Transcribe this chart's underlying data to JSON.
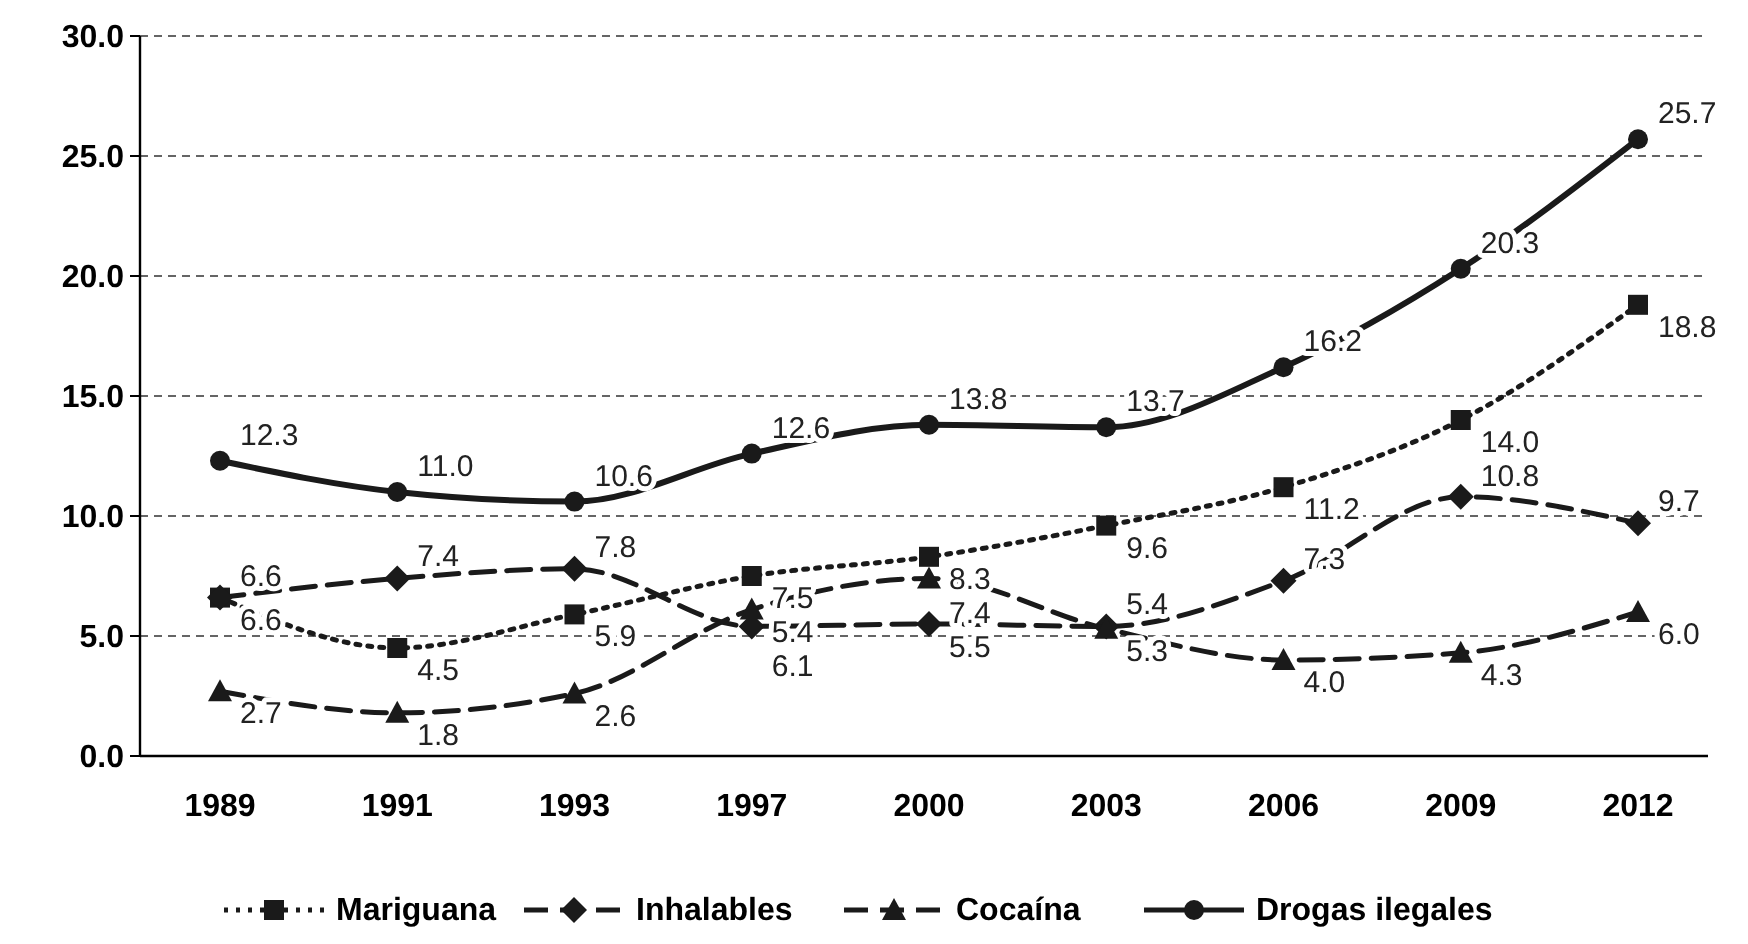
{
  "chart_data": {
    "type": "line",
    "categories": [
      "1989",
      "1991",
      "1993",
      "1997",
      "2000",
      "2003",
      "2006",
      "2009",
      "2012"
    ],
    "series": [
      {
        "name": "Mariguana",
        "color": "#1a1a1a",
        "marker": "square",
        "line_style": "dotted",
        "values": [
          6.6,
          4.5,
          5.9,
          7.5,
          8.3,
          9.6,
          11.2,
          14.0,
          18.8
        ],
        "value_labels": [
          "6.6",
          "4.5",
          "5.9",
          "7.5",
          "8.3",
          "9.6",
          "11.2",
          "14.0",
          "18.8"
        ]
      },
      {
        "name": "Inhalables",
        "color": "#1a1a1a",
        "marker": "diamond",
        "line_style": "dashed",
        "values": [
          6.6,
          7.4,
          7.8,
          5.4,
          5.5,
          5.4,
          7.3,
          10.8,
          9.7
        ],
        "value_labels": [
          "6.6",
          "7.4",
          "7.8",
          "5.4",
          "5.5",
          "5.4",
          "7.3",
          "10.8",
          "9.7"
        ]
      },
      {
        "name": "Cocaína",
        "color": "#1a1a1a",
        "marker": "triangle",
        "line_style": "dashed",
        "values": [
          2.7,
          1.8,
          2.6,
          6.1,
          7.4,
          5.3,
          4.0,
          4.3,
          6.0
        ],
        "value_labels": [
          "2.7",
          "1.8",
          "2.6",
          "6.1",
          "7.4",
          "5.3",
          "4.0",
          "4.3",
          "6.0"
        ]
      },
      {
        "name": "Drogas ilegales",
        "color": "#1a1a1a",
        "marker": "circle",
        "line_style": "solid",
        "values": [
          12.3,
          11.0,
          10.6,
          12.6,
          13.8,
          13.7,
          16.2,
          20.3,
          25.7
        ],
        "value_labels": [
          "12.3",
          "11.0",
          "10.6",
          "12.6",
          "13.8",
          "13.7",
          "16.2",
          "20.3",
          "25.7"
        ]
      }
    ],
    "ylim": [
      0,
      30
    ],
    "yticks": [
      {
        "value": 0,
        "label": "0.0"
      },
      {
        "value": 5,
        "label": "5.0"
      },
      {
        "value": 10,
        "label": "10.0"
      },
      {
        "value": 15,
        "label": "15.0"
      },
      {
        "value": 20,
        "label": "20.0"
      },
      {
        "value": 25,
        "label": "25.0"
      },
      {
        "value": 30,
        "label": "30.0"
      }
    ],
    "grid": "y",
    "legend": "bottom"
  }
}
